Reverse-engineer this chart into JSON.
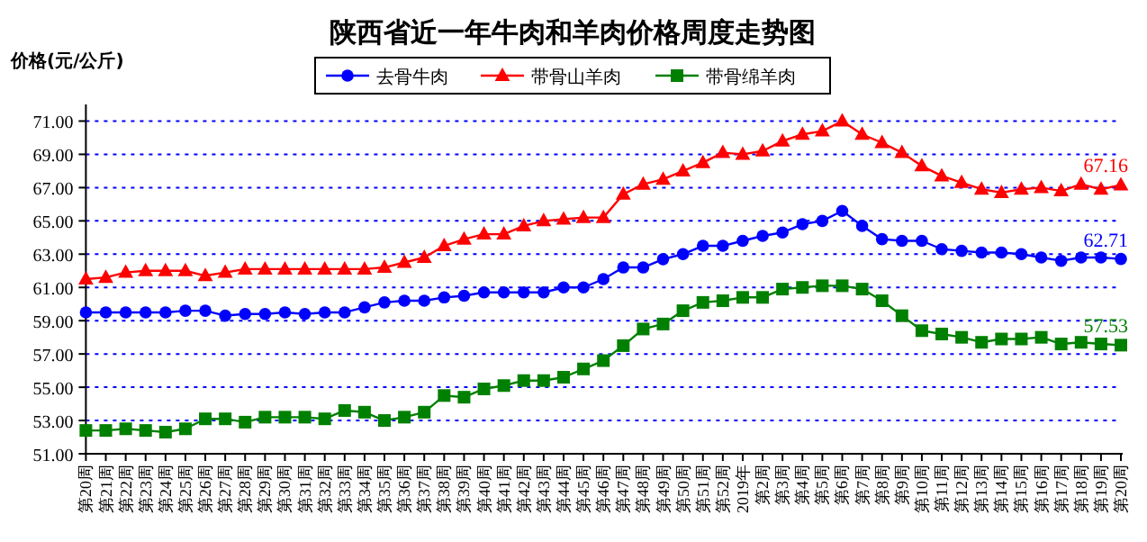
{
  "chart_data": {
    "type": "line",
    "title": "陕西省近一年牛肉和羊肉价格周度走势图",
    "ylabel": "价格(元/公斤)",
    "categories": [
      "第20周",
      "第21周",
      "第22周",
      "第23周",
      "第24周",
      "第25周",
      "第26周",
      "第27周",
      "第28周",
      "第29周",
      "第30周",
      "第31周",
      "第32周",
      "第33周",
      "第34周",
      "第35周",
      "第36周",
      "第37周",
      "第38周",
      "第39周",
      "第40周",
      "第41周",
      "第42周",
      "第43周",
      "第44周",
      "第45周",
      "第46周",
      "第47周",
      "第48周",
      "第49周",
      "第50周",
      "第51周",
      "第52周",
      "2019年",
      "第2周",
      "第3周",
      "第4周",
      "第5周",
      "第6周",
      "第7周",
      "第8周",
      "第9周",
      "第10周",
      "第11周",
      "第12周",
      "第13周",
      "第14周",
      "第15周",
      "第16周",
      "第17周",
      "第18周",
      "第19周",
      "第20周"
    ],
    "series": [
      {
        "name": "去骨牛肉",
        "color": "#0000ff",
        "marker": "circle",
        "values": [
          59.5,
          59.5,
          59.5,
          59.5,
          59.5,
          59.6,
          59.6,
          59.3,
          59.4,
          59.4,
          59.5,
          59.4,
          59.5,
          59.5,
          59.8,
          60.1,
          60.2,
          60.2,
          60.4,
          60.5,
          60.7,
          60.7,
          60.7,
          60.7,
          61.0,
          61.0,
          61.5,
          62.2,
          62.2,
          62.7,
          63.0,
          63.5,
          63.5,
          63.8,
          64.1,
          64.3,
          64.8,
          65.0,
          65.6,
          64.7,
          63.9,
          63.8,
          63.8,
          63.3,
          63.2,
          63.1,
          63.1,
          63.0,
          62.8,
          62.6,
          62.8,
          62.8,
          62.71
        ],
        "value_labels": [
          null,
          null,
          null,
          null,
          null,
          null,
          null,
          null,
          null,
          null,
          null,
          null,
          null,
          null,
          null,
          null,
          null,
          null,
          null,
          null,
          null,
          null,
          null,
          null,
          null,
          null,
          null,
          null,
          null,
          null,
          null,
          null,
          null,
          null,
          null,
          null,
          null,
          null,
          null,
          null,
          null,
          null,
          null,
          null,
          null,
          null,
          null,
          null,
          null,
          null,
          null,
          null,
          "62.71"
        ]
      },
      {
        "name": "带骨山羊肉",
        "color": "#ff0000",
        "marker": "triangle",
        "values": [
          61.5,
          61.6,
          61.9,
          62.0,
          62.0,
          62.0,
          61.7,
          61.9,
          62.1,
          62.1,
          62.1,
          62.1,
          62.1,
          62.1,
          62.1,
          62.2,
          62.5,
          62.8,
          63.5,
          63.9,
          64.2,
          64.2,
          64.7,
          65.0,
          65.1,
          65.2,
          65.2,
          66.6,
          67.2,
          67.5,
          68.0,
          68.5,
          69.1,
          69.0,
          69.2,
          69.8,
          70.2,
          70.4,
          71.0,
          70.2,
          69.7,
          69.1,
          68.3,
          67.7,
          67.3,
          66.9,
          66.7,
          66.9,
          67.0,
          66.8,
          67.2,
          66.9,
          67.16
        ],
        "value_labels": [
          null,
          null,
          null,
          null,
          null,
          null,
          null,
          null,
          null,
          null,
          null,
          null,
          null,
          null,
          null,
          null,
          null,
          null,
          null,
          null,
          null,
          null,
          null,
          null,
          null,
          null,
          null,
          null,
          null,
          null,
          null,
          null,
          null,
          null,
          null,
          null,
          null,
          null,
          null,
          null,
          null,
          null,
          null,
          null,
          null,
          null,
          null,
          null,
          null,
          null,
          null,
          null,
          "67.16"
        ]
      },
      {
        "name": "带骨绵羊肉",
        "color": "#008000",
        "marker": "square",
        "values": [
          52.4,
          52.4,
          52.5,
          52.4,
          52.3,
          52.5,
          53.1,
          53.1,
          52.9,
          53.2,
          53.2,
          53.2,
          53.1,
          53.6,
          53.5,
          53.0,
          53.2,
          53.5,
          54.5,
          54.4,
          54.9,
          55.1,
          55.4,
          55.4,
          55.6,
          56.1,
          56.6,
          57.5,
          58.5,
          58.8,
          59.6,
          60.1,
          60.2,
          60.4,
          60.4,
          60.9,
          61.0,
          61.1,
          61.1,
          60.9,
          60.2,
          59.3,
          58.4,
          58.2,
          58.0,
          57.7,
          57.9,
          57.9,
          58.0,
          57.6,
          57.7,
          57.6,
          57.53
        ],
        "value_labels": [
          null,
          null,
          null,
          null,
          null,
          null,
          null,
          null,
          null,
          null,
          null,
          null,
          null,
          null,
          null,
          null,
          null,
          null,
          null,
          null,
          null,
          null,
          null,
          null,
          null,
          null,
          null,
          null,
          null,
          null,
          null,
          null,
          null,
          null,
          null,
          null,
          null,
          null,
          null,
          null,
          null,
          null,
          null,
          null,
          null,
          null,
          null,
          null,
          null,
          null,
          null,
          null,
          "57.53"
        ]
      }
    ],
    "ylim": [
      51,
      72
    ],
    "yticks": [
      {
        "value": 51,
        "label": "51.00"
      },
      {
        "value": 53,
        "label": "53.00"
      },
      {
        "value": 55,
        "label": "55.00"
      },
      {
        "value": 57,
        "label": "57.00"
      },
      {
        "value": 59,
        "label": "59.00"
      },
      {
        "value": 61,
        "label": "61.00"
      },
      {
        "value": 63,
        "label": "63.00"
      },
      {
        "value": 65,
        "label": "65.00"
      },
      {
        "value": 67,
        "label": "67.00"
      },
      {
        "value": 69,
        "label": "69.00"
      },
      {
        "value": 71,
        "label": "71.00"
      }
    ],
    "grid": "y",
    "legend": "top",
    "line_style": "solid"
  }
}
